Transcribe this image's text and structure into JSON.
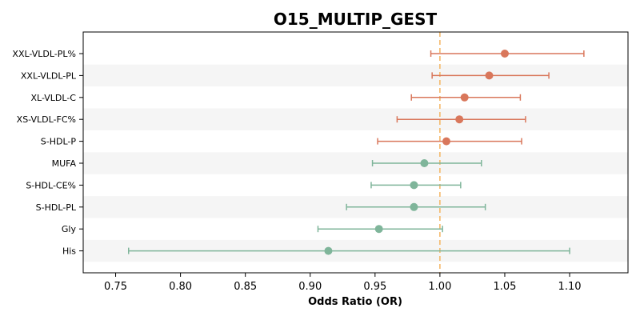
{
  "chart_data": {
    "type": "forest",
    "title": "O15_MULTIP_GEST",
    "xlabel": "Odds Ratio (OR)",
    "ylabel": "",
    "xlim": [
      0.725,
      1.145
    ],
    "x_ticks": [
      "0.75",
      "0.80",
      "0.85",
      "0.90",
      "0.95",
      "1.00",
      "1.05",
      "1.10"
    ],
    "x_tick_values": [
      0.75,
      0.8,
      0.85,
      0.9,
      0.95,
      1.0,
      1.05,
      1.1
    ],
    "reference_line": 1.0,
    "grid": false,
    "categories": [
      "XXL-VLDL-PL%",
      "XXL-VLDL-PL",
      "XL-VLDL-C",
      "XS-VLDL-FC%",
      "S-HDL-P",
      "MUFA",
      "S-HDL-CE%",
      "S-HDL-PL",
      "Gly",
      "His"
    ],
    "or": [
      1.05,
      1.038,
      1.019,
      1.015,
      1.005,
      0.988,
      0.98,
      0.98,
      0.953,
      0.914
    ],
    "lower": [
      0.993,
      0.994,
      0.978,
      0.967,
      0.952,
      0.948,
      0.947,
      0.928,
      0.906,
      0.76
    ],
    "upper": [
      1.111,
      1.084,
      1.062,
      1.066,
      1.063,
      1.032,
      1.016,
      1.035,
      1.002,
      1.1
    ],
    "colors": {
      "positive": "#d9775b",
      "negative": "#7fb59a",
      "reference": "#f5b96a",
      "band": "#f5f5f5"
    }
  }
}
